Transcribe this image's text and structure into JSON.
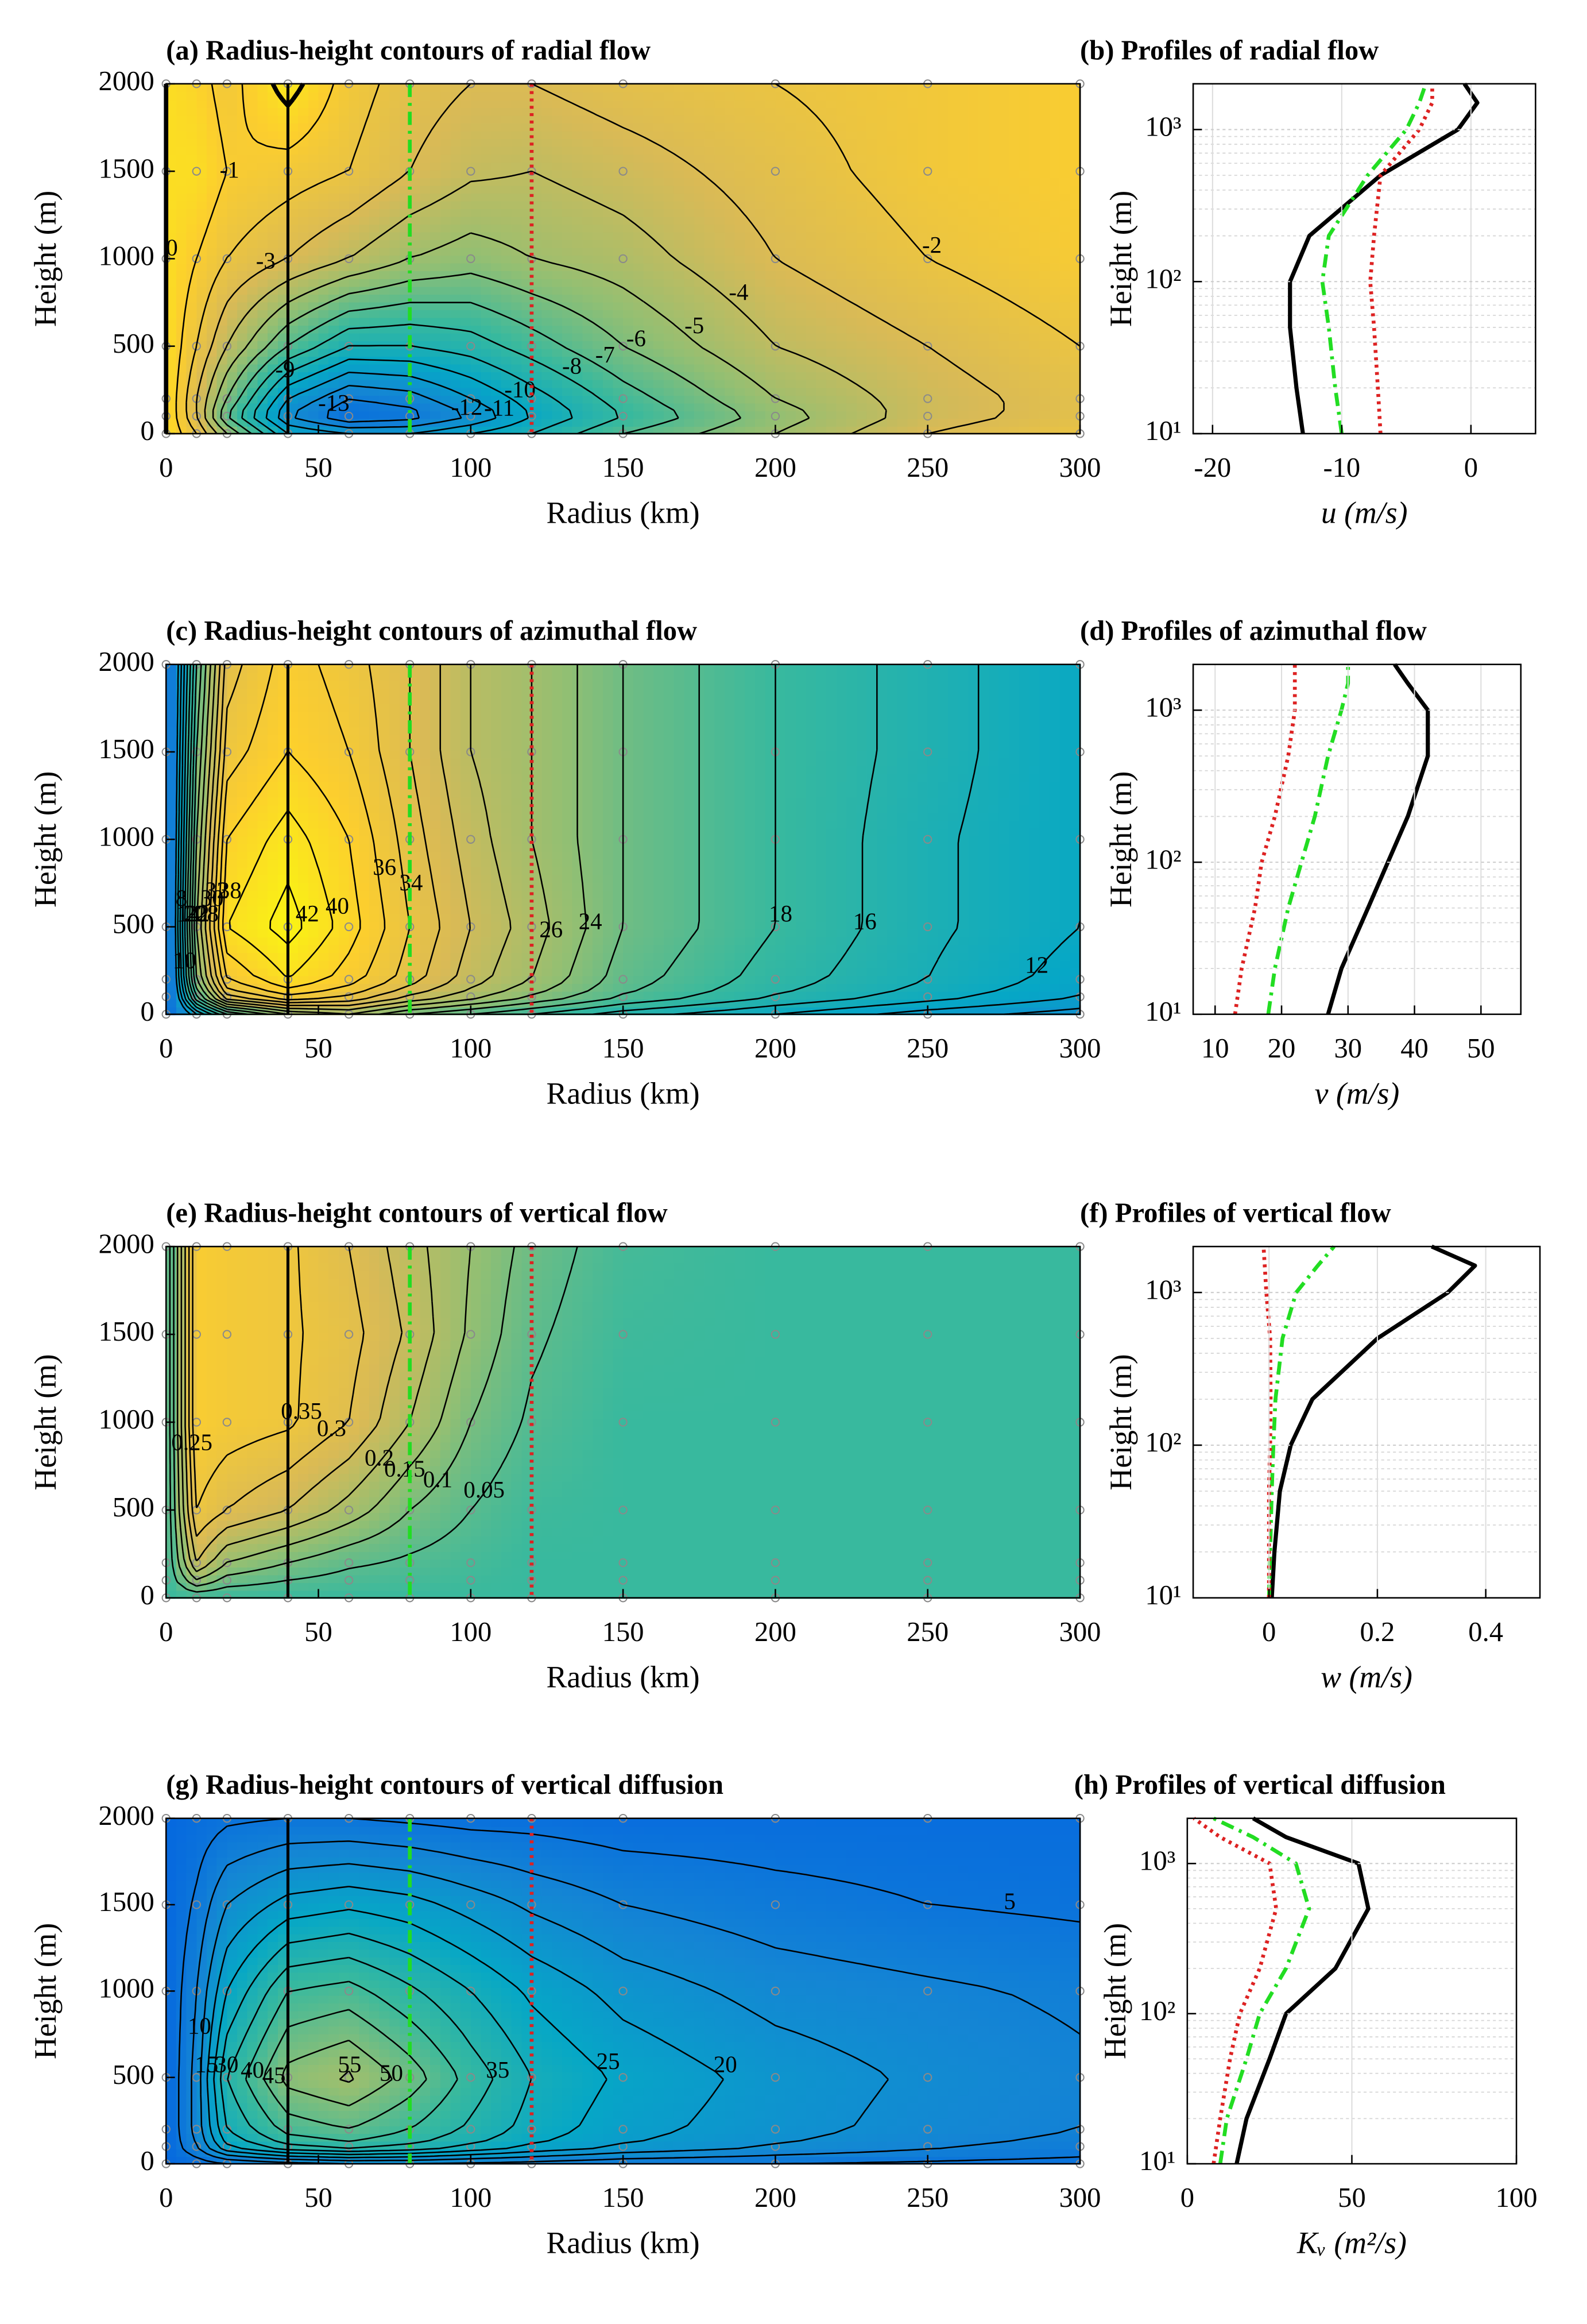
{
  "chart_data": [
    {
      "type": "contour",
      "title": "(a) Radius-height contours of radial flow",
      "xlabel": "Radius (km)",
      "ylabel": "Height (m)",
      "xlim": [
        0,
        300
      ],
      "ylim": [
        0,
        2000
      ],
      "xticks": [
        0,
        50,
        100,
        150,
        200,
        250,
        300
      ],
      "yticks": [
        0,
        500,
        1000,
        1500,
        2000
      ],
      "x": [
        0,
        10,
        20,
        40,
        60,
        80,
        100,
        120,
        150,
        200,
        250,
        300
      ],
      "y": [
        0,
        100,
        200,
        500,
        1000,
        1500,
        2000
      ],
      "z": [
        [
          0,
          -2,
          -5,
          -10,
          -11,
          -11,
          -10,
          -9,
          -7,
          -5,
          -3,
          -2
        ],
        [
          0,
          -3,
          -7,
          -12,
          -14,
          -13.5,
          -12,
          -10,
          -8,
          -5.5,
          -3.5,
          -2.5
        ],
        [
          0,
          -3,
          -6,
          -11,
          -13,
          -12.5,
          -11,
          -9.5,
          -7.5,
          -5,
          -3.5,
          -2.5
        ],
        [
          0,
          -2,
          -4,
          -7,
          -9,
          -9,
          -8.5,
          -7.5,
          -6,
          -4,
          -3,
          -2
        ],
        [
          0,
          -1,
          -2,
          -3,
          -4,
          -5,
          -5.5,
          -5,
          -4.5,
          -3,
          -2,
          -1.2
        ],
        [
          0,
          0,
          -1,
          -1.5,
          -2,
          -3,
          -3.8,
          -4,
          -3.5,
          -2.5,
          -1.5,
          -1
        ],
        [
          0,
          -0.5,
          -1.5,
          0.5,
          -1.5,
          -2.5,
          -3,
          -3,
          -2.5,
          -2,
          -1.5,
          -1
        ]
      ],
      "levels": [
        -14,
        -13,
        -12,
        -11,
        -10,
        -9,
        -8,
        -7,
        -6,
        -5,
        -4,
        -3,
        -2,
        -1,
        0,
        1
      ],
      "clim": [
        -17,
        1.5
      ],
      "zero_line_style": "dashed",
      "profile_lines": [
        {
          "r": 40,
          "color": "#000000",
          "style": "solid"
        },
        {
          "r": 80,
          "color": "#22dd22",
          "style": "dashdot"
        },
        {
          "r": 120,
          "color": "#dd2222",
          "style": "dotted"
        }
      ]
    },
    {
      "type": "line",
      "title": "(b) Profiles of radial flow",
      "xlabel": "u (m/s)",
      "ylabel": "Height (m)",
      "log_y": true,
      "grid": true,
      "xlim": [
        -21.5,
        5
      ],
      "ylim": [
        10,
        2000
      ],
      "xticks": [
        -20,
        -10,
        0
      ],
      "yticks": [
        {
          "value": 10,
          "label": "10¹"
        },
        {
          "value": 100,
          "label": "10²"
        },
        {
          "value": 1000,
          "label": "10³"
        }
      ],
      "y": [
        10,
        20,
        50,
        100,
        200,
        500,
        1000,
        1500,
        2000
      ],
      "series": [
        {
          "color": "#000000",
          "style": "solid",
          "values": [
            -13,
            -13.5,
            -14,
            -14,
            -12.5,
            -7,
            -1,
            0.5,
            -0.5
          ]
        },
        {
          "color": "#22dd22",
          "style": "dashdot",
          "values": [
            -10,
            -10.5,
            -11,
            -11.5,
            -11,
            -8,
            -5,
            -4,
            -3.5
          ]
        },
        {
          "color": "#dd2222",
          "style": "dotted",
          "values": [
            -7,
            -7.2,
            -7.5,
            -7.8,
            -7.5,
            -7,
            -4,
            -3,
            -3
          ]
        }
      ]
    },
    {
      "type": "contour",
      "title": "(c) Radius-height contours of azimuthal flow",
      "xlabel": "Radius (km)",
      "ylabel": "Height (m)",
      "xlim": [
        0,
        300
      ],
      "ylim": [
        0,
        2000
      ],
      "xticks": [
        0,
        50,
        100,
        150,
        200,
        250,
        300
      ],
      "yticks": [
        0,
        500,
        1000,
        1500,
        2000
      ],
      "x": [
        0,
        10,
        20,
        40,
        60,
        80,
        100,
        120,
        150,
        200,
        250,
        300
      ],
      "y": [
        0,
        100,
        200,
        500,
        1000,
        1500,
        2000
      ],
      "z": [
        [
          0,
          10,
          18,
          24,
          26,
          22,
          20,
          18,
          15,
          12,
          9,
          7
        ],
        [
          0,
          20,
          32,
          36,
          34,
          30,
          27,
          24,
          20,
          16,
          13,
          10
        ],
        [
          0,
          24,
          36,
          40,
          37,
          33,
          29,
          26,
          21,
          17,
          14,
          11
        ],
        [
          0,
          26,
          40,
          43,
          39,
          34,
          30,
          27,
          22,
          18,
          14.5,
          12
        ],
        [
          0,
          24,
          38,
          41,
          38,
          33,
          29,
          26,
          22,
          18,
          14.5,
          12
        ],
        [
          0,
          22,
          35,
          38,
          36,
          32,
          28,
          26,
          22,
          18,
          15,
          12
        ],
        [
          0,
          20,
          33,
          37,
          35,
          32,
          28,
          26,
          22,
          18,
          15,
          12
        ]
      ],
      "levels": [
        8,
        10,
        12,
        14,
        16,
        18,
        20,
        22,
        24,
        26,
        28,
        30,
        32,
        34,
        36,
        38,
        40,
        42
      ],
      "clim": [
        -8,
        44
      ],
      "profile_lines": [
        {
          "r": 40,
          "color": "#000000",
          "style": "solid"
        },
        {
          "r": 80,
          "color": "#22dd22",
          "style": "dashdot"
        },
        {
          "r": 120,
          "color": "#dd2222",
          "style": "dotted"
        }
      ]
    },
    {
      "type": "line",
      "title": "(d) Profiles of azimuthal flow",
      "xlabel": "v (m/s)",
      "ylabel": "Height (m)",
      "log_y": true,
      "grid": true,
      "xlim": [
        6.7,
        56
      ],
      "ylim": [
        10,
        2000
      ],
      "xticks": [
        10,
        20,
        30,
        40,
        50
      ],
      "yticks": [
        {
          "value": 10,
          "label": "10¹"
        },
        {
          "value": 100,
          "label": "10²"
        },
        {
          "value": 1000,
          "label": "10³"
        }
      ],
      "y": [
        10,
        20,
        50,
        100,
        200,
        500,
        1000,
        1500,
        2000
      ],
      "series": [
        {
          "color": "#000000",
          "style": "solid",
          "values": [
            27,
            29,
            33,
            36,
            39,
            42,
            42,
            39,
            37
          ]
        },
        {
          "color": "#22dd22",
          "style": "dashdot",
          "values": [
            18,
            19,
            21,
            23,
            25,
            27,
            29,
            30,
            30
          ]
        },
        {
          "color": "#dd2222",
          "style": "dotted",
          "values": [
            13,
            14,
            16,
            17,
            19,
            21,
            22,
            22,
            22
          ]
        }
      ]
    },
    {
      "type": "contour",
      "title": "(e) Radius-height contours of vertical flow",
      "xlabel": "Radius (km)",
      "ylabel": "Height (m)",
      "xlim": [
        0,
        300
      ],
      "ylim": [
        0,
        2000
      ],
      "xticks": [
        0,
        50,
        100,
        150,
        200,
        250,
        300
      ],
      "yticks": [
        0,
        500,
        1000,
        1500,
        2000
      ],
      "x": [
        0,
        10,
        20,
        40,
        60,
        80,
        100,
        120,
        150,
        200,
        250,
        300
      ],
      "y": [
        0,
        100,
        200,
        500,
        1000,
        1500,
        2000
      ],
      "z": [
        [
          0,
          0,
          0,
          0,
          0,
          0,
          0,
          0,
          0,
          0,
          0,
          0
        ],
        [
          0,
          0.15,
          0.08,
          0.05,
          0.03,
          0.02,
          0.01,
          0,
          0,
          0,
          0,
          0
        ],
        [
          0,
          0.25,
          0.15,
          0.1,
          0.06,
          0.04,
          0.02,
          0,
          0,
          0,
          0,
          0
        ],
        [
          0,
          0.35,
          0.3,
          0.25,
          0.18,
          0.1,
          0.05,
          0.01,
          0,
          0,
          0,
          0
        ],
        [
          0,
          0.4,
          0.38,
          0.36,
          0.3,
          0.2,
          0.1,
          0.04,
          0,
          0,
          0,
          0
        ],
        [
          0,
          0.4,
          0.38,
          0.36,
          0.32,
          0.24,
          0.14,
          0.06,
          0.01,
          0,
          0,
          0
        ],
        [
          0,
          0.4,
          0.38,
          0.36,
          0.3,
          0.22,
          0.15,
          0.08,
          0.02,
          0,
          0,
          0
        ]
      ],
      "levels": [
        0,
        0.05,
        0.1,
        0.15,
        0.2,
        0.25,
        0.3,
        0.35
      ],
      "clim": [
        -0.55,
        0.55
      ],
      "profile_lines": [
        {
          "r": 40,
          "color": "#000000",
          "style": "solid"
        },
        {
          "r": 80,
          "color": "#22dd22",
          "style": "dashdot"
        },
        {
          "r": 120,
          "color": "#dd2222",
          "style": "dotted"
        }
      ]
    },
    {
      "type": "line",
      "title": "(f) Profiles of vertical flow",
      "xlabel": "w (m/s)",
      "ylabel": "Height (m)",
      "log_y": true,
      "grid": true,
      "xlim": [
        -0.14,
        0.5
      ],
      "ylim": [
        10,
        2000
      ],
      "xticks": [
        0,
        0.2,
        0.4
      ],
      "yticks": [
        {
          "value": 10,
          "label": "10¹"
        },
        {
          "value": 100,
          "label": "10²"
        },
        {
          "value": 1000,
          "label": "10³"
        }
      ],
      "y": [
        10,
        20,
        50,
        100,
        200,
        500,
        1000,
        1500,
        2000
      ],
      "series": [
        {
          "color": "#000000",
          "style": "solid",
          "values": [
            0.005,
            0.01,
            0.02,
            0.04,
            0.08,
            0.2,
            0.33,
            0.38,
            0.3
          ]
        },
        {
          "color": "#22dd22",
          "style": "dashdot",
          "values": [
            0,
            0.002,
            0.005,
            0.008,
            0.012,
            0.025,
            0.05,
            0.09,
            0.12
          ]
        },
        {
          "color": "#dd2222",
          "style": "dotted",
          "values": [
            0,
            0,
            0,
            0.002,
            0.003,
            0.002,
            -0.005,
            -0.008,
            -0.01
          ]
        }
      ]
    },
    {
      "type": "contour",
      "title": "(g) Radius-height contours of vertical diffusion",
      "xlabel": "Radius (km)",
      "ylabel": "Height (m)",
      "xlim": [
        0,
        300
      ],
      "ylim": [
        0,
        2000
      ],
      "xticks": [
        0,
        50,
        100,
        150,
        200,
        250,
        300
      ],
      "yticks": [
        0,
        500,
        1000,
        1500,
        2000
      ],
      "x": [
        0,
        10,
        20,
        40,
        60,
        80,
        100,
        120,
        150,
        200,
        250,
        300
      ],
      "y": [
        0,
        100,
        200,
        500,
        1000,
        1500,
        2000
      ],
      "z": [
        [
          0,
          2,
          5,
          8,
          10,
          10,
          9,
          8,
          6,
          5,
          4,
          3
        ],
        [
          0,
          10,
          25,
          35,
          38,
          35,
          30,
          25,
          20,
          15,
          11,
          8
        ],
        [
          0,
          12,
          30,
          42,
          45,
          40,
          34,
          28,
          22,
          17,
          13,
          10
        ],
        [
          0,
          12,
          35,
          52,
          56,
          48,
          38,
          30,
          24,
          18,
          14,
          11
        ],
        [
          0,
          10,
          25,
          40,
          42,
          36,
          30,
          24,
          18,
          13,
          11,
          9
        ],
        [
          0,
          6,
          15,
          22,
          24,
          22,
          18,
          14,
          10,
          7,
          5,
          4
        ],
        [
          0,
          2,
          4,
          5,
          5,
          4,
          3,
          3,
          2,
          2,
          2,
          2
        ]
      ],
      "levels": [
        5,
        10,
        15,
        20,
        25,
        30,
        35,
        40,
        45,
        50,
        55
      ],
      "clim": [
        -16,
        94
      ],
      "profile_lines": [
        {
          "r": 40,
          "color": "#000000",
          "style": "solid"
        },
        {
          "r": 80,
          "color": "#22dd22",
          "style": "dashdot"
        },
        {
          "r": 120,
          "color": "#dd2222",
          "style": "dotted"
        }
      ]
    },
    {
      "type": "line",
      "title": "(h) Profiles of vertical diffusion",
      "xlabel": "Kᵥ (m²/s)",
      "ylabel": "Height (m)",
      "log_y": true,
      "grid": true,
      "xlim": [
        0,
        100
      ],
      "ylim": [
        10,
        2000
      ],
      "xticks": [
        0,
        50,
        100
      ],
      "yticks": [
        {
          "value": 10,
          "label": "10¹"
        },
        {
          "value": 100,
          "label": "10²"
        },
        {
          "value": 1000,
          "label": "10³"
        }
      ],
      "y": [
        10,
        20,
        50,
        100,
        200,
        500,
        1000,
        1500,
        2000
      ],
      "series": [
        {
          "color": "#000000",
          "style": "solid",
          "values": [
            15,
            18,
            25,
            30,
            45,
            55,
            52,
            30,
            20
          ]
        },
        {
          "color": "#22dd22",
          "style": "dashdot",
          "values": [
            10,
            12,
            18,
            22,
            30,
            37,
            33,
            20,
            8
          ]
        },
        {
          "color": "#dd2222",
          "style": "dotted",
          "values": [
            8,
            10,
            13,
            16,
            22,
            27,
            25,
            10,
            2
          ]
        }
      ]
    }
  ]
}
